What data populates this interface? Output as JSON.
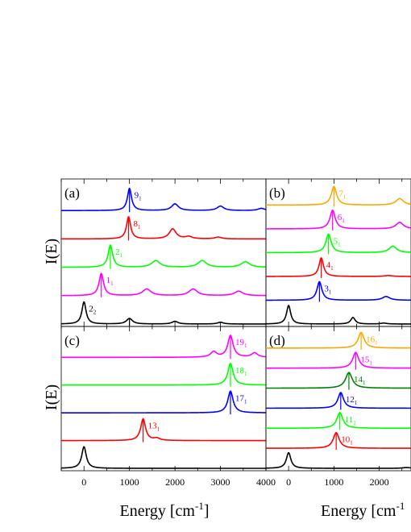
{
  "figure": {
    "ylabel_top": "I(E)",
    "ylabel_bottom": "I(E)",
    "xlabel_left": "Energy [cm",
    "xlabel_right": "Energy [cm",
    "xlabel_exp": "-1"
  },
  "chart_data": [
    {
      "panel": "(a)",
      "type": "line",
      "xlim": [
        -500,
        4000
      ],
      "x_ticks": [],
      "xlabel": "",
      "ylabel": "I(E)",
      "series": [
        {
          "label": "2",
          "sub": "2",
          "color": "#000000",
          "peaks": [
            [
              0,
              1.0,
              55
            ],
            [
              1000,
              0.25,
              80
            ],
            [
              2000,
              0.12,
              80
            ],
            [
              3000,
              0.08,
              80
            ]
          ],
          "marker": 1000
        },
        {
          "label": "1",
          "sub": "1",
          "color": "#ff00ff",
          "peaks": [
            [
              380,
              1.0,
              60
            ],
            [
              1380,
              0.3,
              110
            ],
            [
              2400,
              0.3,
              110
            ],
            [
              3400,
              0.2,
              110
            ]
          ],
          "marker": 380
        },
        {
          "label": "2",
          "sub": "1",
          "color": "#00ff00",
          "peaks": [
            [
              580,
              1.0,
              60
            ],
            [
              1580,
              0.3,
              110
            ],
            [
              2600,
              0.3,
              110
            ],
            [
              3550,
              0.25,
              110
            ]
          ],
          "marker": 580
        },
        {
          "label": "8",
          "sub": "1",
          "color": "#ff0000",
          "peaks": [
            [
              980,
              1.0,
              55
            ],
            [
              1950,
              0.45,
              90
            ],
            [
              2300,
              0.1,
              90
            ],
            [
              2950,
              0.08,
              90
            ]
          ],
          "marker": 980
        },
        {
          "label": "9",
          "sub": "1",
          "color": "#0000ff",
          "peaks": [
            [
              1000,
              1.0,
              55
            ],
            [
              2000,
              0.3,
              90
            ],
            [
              3000,
              0.2,
              90
            ],
            [
              3900,
              0.1,
              90
            ]
          ],
          "marker": 1000
        }
      ]
    },
    {
      "panel": "(b)",
      "type": "line",
      "xlim": [
        -500,
        2700
      ],
      "x_ticks": [],
      "xlabel": "",
      "series": [
        {
          "label": "",
          "sub": "",
          "color": "#000000",
          "peaks": [
            [
              0,
              1.0,
              55
            ],
            [
              1420,
              0.35,
              60
            ],
            [
              2100,
              0.05,
              80
            ]
          ],
          "marker": null
        },
        {
          "label": "3",
          "sub": "1",
          "color": "#0000ff",
          "peaks": [
            [
              680,
              1.0,
              65
            ],
            [
              2150,
              0.2,
              100
            ]
          ],
          "marker": 680
        },
        {
          "label": "4",
          "sub": "1",
          "color": "#ff0000",
          "peaks": [
            [
              720,
              1.0,
              60
            ],
            [
              2200,
              0.05,
              100
            ]
          ],
          "marker": 720
        },
        {
          "label": "5",
          "sub": "1",
          "color": "#00ff00",
          "peaks": [
            [
              880,
              1.0,
              70
            ],
            [
              2300,
              0.35,
              100
            ]
          ],
          "marker": 880
        },
        {
          "label": "6",
          "sub": "1",
          "color": "#ff00ff",
          "peaks": [
            [
              970,
              1.0,
              70
            ],
            [
              2450,
              0.35,
              100
            ]
          ],
          "marker": 970
        },
        {
          "label": "7",
          "sub": "1",
          "color": "#ffa500",
          "peaks": [
            [
              1000,
              1.0,
              70
            ],
            [
              2450,
              0.35,
              100
            ]
          ],
          "marker": 1000
        }
      ]
    },
    {
      "panel": "(c)",
      "type": "line",
      "xlim": [
        -500,
        4000
      ],
      "x_ticks": [
        0,
        1000,
        2000,
        3000,
        4000
      ],
      "xlabel": "Energy [cm-1]",
      "ylabel": "I(E)",
      "series": [
        {
          "label": "",
          "sub": "",
          "color": "#000000",
          "peaks": [
            [
              0,
              1.0,
              60
            ]
          ],
          "marker": null
        },
        {
          "label": "13",
          "sub": "1",
          "color": "#ff0000",
          "peaks": [
            [
              1300,
              1.0,
              65
            ],
            [
              1600,
              0.1,
              80
            ]
          ],
          "marker": 1300
        },
        {
          "label": "17",
          "sub": "1",
          "color": "#0000ff",
          "peaks": [
            [
              3220,
              1.0,
              70
            ]
          ],
          "marker": 3220
        },
        {
          "label": "18",
          "sub": "1",
          "color": "#00ff00",
          "peaks": [
            [
              3220,
              1.0,
              70
            ]
          ],
          "marker": 3220
        },
        {
          "label": "19",
          "sub": "1",
          "color": "#ff00ff",
          "peaks": [
            [
              3220,
              1.0,
              70
            ],
            [
              2850,
              0.25,
              80
            ],
            [
              3750,
              0.2,
              80
            ]
          ],
          "marker": 3220
        }
      ]
    },
    {
      "panel": "(d)",
      "type": "line",
      "xlim": [
        -500,
        2700
      ],
      "x_ticks": [
        0,
        1000,
        2000
      ],
      "xlabel": "Energy [cm-1]",
      "series": [
        {
          "label": "",
          "sub": "",
          "color": "#000000",
          "peaks": [
            [
              0,
              1.0,
              60
            ],
            [
              2600,
              0.05,
              100
            ]
          ],
          "marker": null
        },
        {
          "label": "10",
          "sub": "1",
          "color": "#ff0000",
          "peaks": [
            [
              1050,
              1.0,
              80
            ]
          ],
          "marker": 1050
        },
        {
          "label": "11",
          "sub": "1",
          "color": "#00ff00",
          "peaks": [
            [
              1130,
              1.0,
              80
            ]
          ],
          "marker": 1130
        },
        {
          "label": "12",
          "sub": "1",
          "color": "#0000ff",
          "peaks": [
            [
              1150,
              1.0,
              75
            ]
          ],
          "marker": 1150
        },
        {
          "label": "14",
          "sub": "1",
          "color": "#008000",
          "peaks": [
            [
              1330,
              1.0,
              90
            ]
          ],
          "marker": 1330
        },
        {
          "label": "15",
          "sub": "1",
          "color": "#ff00ff",
          "peaks": [
            [
              1480,
              1.0,
              80
            ]
          ],
          "marker": 1480
        },
        {
          "label": "16",
          "sub": "1",
          "color": "#ffa500",
          "peaks": [
            [
              1600,
              1.0,
              80
            ]
          ],
          "marker": 1600
        }
      ]
    }
  ]
}
